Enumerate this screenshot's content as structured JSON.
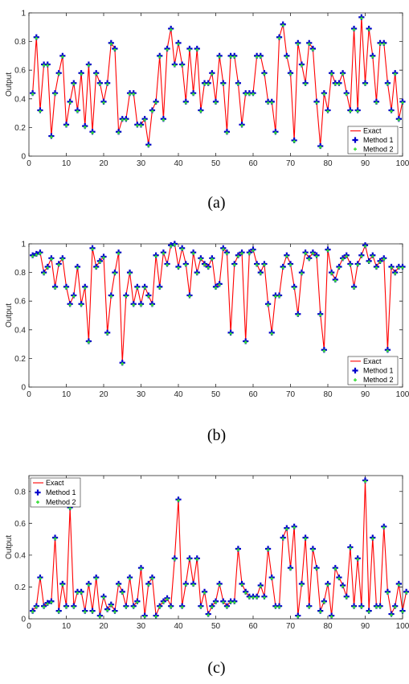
{
  "colors": {
    "exact": "#ff0000",
    "method1": "#0000cc",
    "method2": "#33dd33",
    "axis": "#262626"
  },
  "chart_data": [
    {
      "caption": "(a)",
      "type": "line",
      "ylabel": "Output",
      "xlim": [
        0,
        100
      ],
      "ylim": [
        0,
        1
      ],
      "xticks": [
        0,
        10,
        20,
        30,
        40,
        50,
        60,
        70,
        80,
        90,
        100
      ],
      "yticks": [
        0,
        0.2,
        0.4,
        0.6,
        0.8,
        1
      ],
      "ytick_labels": [
        "0",
        "0.2",
        "0.4",
        "0.6",
        "0.8",
        "1"
      ],
      "legend_position": "lower-right",
      "legend": [
        "Exact",
        "Method 1",
        "Method 2"
      ],
      "values": [
        0.44,
        0.83,
        0.32,
        0.64,
        0.64,
        0.14,
        0.44,
        0.58,
        0.7,
        0.22,
        0.38,
        0.51,
        0.32,
        0.58,
        0.21,
        0.64,
        0.17,
        0.58,
        0.51,
        0.38,
        0.51,
        0.79,
        0.75,
        0.17,
        0.26,
        0.26,
        0.44,
        0.44,
        0.22,
        0.22,
        0.26,
        0.08,
        0.32,
        0.38,
        0.7,
        0.26,
        0.75,
        0.89,
        0.64,
        0.79,
        0.64,
        0.38,
        0.75,
        0.44,
        0.75,
        0.32,
        0.51,
        0.51,
        0.58,
        0.38,
        0.7,
        0.51,
        0.17,
        0.7,
        0.7,
        0.51,
        0.22,
        0.44,
        0.44,
        0.44,
        0.7,
        0.7,
        0.58,
        0.38,
        0.38,
        0.17,
        0.83,
        0.92,
        0.7,
        0.58,
        0.11,
        0.79,
        0.64,
        0.51,
        0.79,
        0.75,
        0.38,
        0.07,
        0.44,
        0.32,
        0.58,
        0.51,
        0.51,
        0.58,
        0.44,
        0.32,
        0.89,
        0.32,
        0.97,
        0.51,
        0.89,
        0.7,
        0.38,
        0.79,
        0.79,
        0.51,
        0.32,
        0.58,
        0.26,
        0.38
      ]
    },
    {
      "caption": "(b)",
      "type": "line",
      "ylabel": "Output",
      "xlim": [
        0,
        100
      ],
      "ylim": [
        0,
        1
      ],
      "xticks": [
        0,
        10,
        20,
        30,
        40,
        50,
        60,
        70,
        80,
        90,
        100
      ],
      "yticks": [
        0,
        0.2,
        0.4,
        0.6,
        0.8,
        1
      ],
      "ytick_labels": [
        "0",
        "0.2",
        "0.4",
        "0.6",
        "0.8",
        "1"
      ],
      "legend_position": "lower-right",
      "legend": [
        "Exact",
        "Method 1",
        "Method 2"
      ],
      "values": [
        0.92,
        0.93,
        0.94,
        0.8,
        0.84,
        0.9,
        0.7,
        0.86,
        0.9,
        0.7,
        0.58,
        0.64,
        0.84,
        0.58,
        0.7,
        0.32,
        0.97,
        0.84,
        0.88,
        0.91,
        0.38,
        0.64,
        0.8,
        0.94,
        0.17,
        0.64,
        0.8,
        0.58,
        0.7,
        0.58,
        0.7,
        0.64,
        0.58,
        0.92,
        0.7,
        0.94,
        0.86,
        0.99,
        1.0,
        0.84,
        0.97,
        0.86,
        0.64,
        0.94,
        0.8,
        0.9,
        0.86,
        0.84,
        0.9,
        0.7,
        0.72,
        0.97,
        0.94,
        0.38,
        0.86,
        0.92,
        0.94,
        0.32,
        0.94,
        0.96,
        0.86,
        0.8,
        0.86,
        0.58,
        0.38,
        0.64,
        0.64,
        0.84,
        0.92,
        0.86,
        0.7,
        0.51,
        0.8,
        0.94,
        0.9,
        0.94,
        0.92,
        0.51,
        0.26,
        0.96,
        0.8,
        0.75,
        0.84,
        0.9,
        0.92,
        0.86,
        0.7,
        0.86,
        0.92,
        0.99,
        0.88,
        0.92,
        0.84,
        0.88,
        0.9,
        0.26,
        0.84,
        0.8,
        0.84,
        0.84
      ]
    },
    {
      "caption": "(c)",
      "type": "line",
      "ylabel": "Output",
      "xlim": [
        0,
        100
      ],
      "ylim": [
        0,
        0.9
      ],
      "xticks": [
        0,
        10,
        20,
        30,
        40,
        50,
        60,
        70,
        80,
        90,
        100
      ],
      "yticks": [
        0,
        0.2,
        0.4,
        0.6,
        0.8
      ],
      "ytick_labels": [
        "0",
        "0.2",
        "0.4",
        "0.6",
        "0.8"
      ],
      "legend_position": "top-left",
      "legend": [
        "Exact",
        "Method 1",
        "Method 2"
      ],
      "values": [
        0.05,
        0.08,
        0.26,
        0.08,
        0.1,
        0.11,
        0.51,
        0.05,
        0.22,
        0.08,
        0.7,
        0.08,
        0.17,
        0.17,
        0.05,
        0.22,
        0.05,
        0.26,
        0.02,
        0.14,
        0.06,
        0.09,
        0.05,
        0.22,
        0.17,
        0.08,
        0.26,
        0.08,
        0.11,
        0.32,
        0.02,
        0.22,
        0.26,
        0.02,
        0.08,
        0.11,
        0.13,
        0.08,
        0.38,
        0.75,
        0.08,
        0.22,
        0.38,
        0.22,
        0.38,
        0.08,
        0.17,
        0.03,
        0.08,
        0.11,
        0.22,
        0.11,
        0.08,
        0.11,
        0.11,
        0.44,
        0.22,
        0.17,
        0.14,
        0.14,
        0.14,
        0.21,
        0.14,
        0.44,
        0.26,
        0.08,
        0.08,
        0.51,
        0.57,
        0.32,
        0.58,
        0.02,
        0.22,
        0.51,
        0.08,
        0.44,
        0.32,
        0.05,
        0.11,
        0.22,
        0.02,
        0.32,
        0.26,
        0.21,
        0.14,
        0.45,
        0.08,
        0.38,
        0.08,
        0.87,
        0.05,
        0.51,
        0.08,
        0.08,
        0.58,
        0.17,
        0.03,
        0.08,
        0.22,
        0.05,
        0.17
      ]
    }
  ]
}
